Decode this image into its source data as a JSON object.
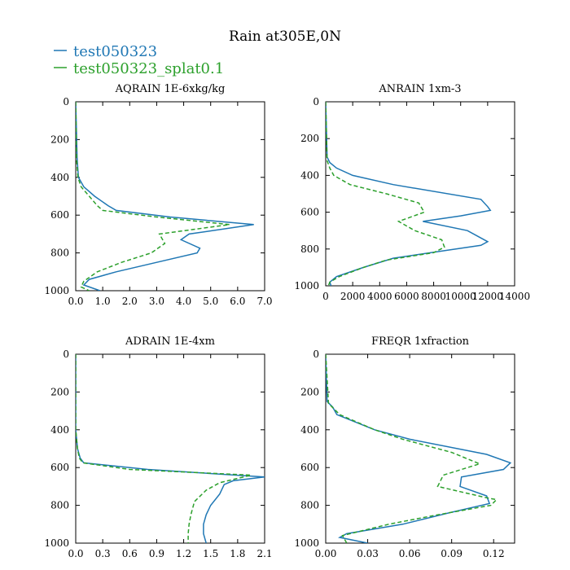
{
  "figure": {
    "title": "Rain at305E,0N",
    "legend": [
      {
        "name": "test050323",
        "color": "#1f77b4",
        "dash": "solid"
      },
      {
        "name": "test050323_splat0.1",
        "color": "#2ca02c",
        "dash": "dashed"
      }
    ]
  },
  "chart_data": [
    {
      "type": "line",
      "title": "AQRAIN  1E-6xkg/kg",
      "xlabel": "",
      "ylabel": "",
      "xlim": [
        0,
        7.0
      ],
      "ylim": [
        1000,
        0
      ],
      "xticks": [
        0,
        1,
        2,
        3,
        4,
        5,
        6,
        7
      ],
      "xtick_labels": [
        "0.0",
        "1.0",
        "2.0",
        "3.0",
        "4.0",
        "5.0",
        "6.0",
        "7.0"
      ],
      "yticks": [
        0,
        200,
        400,
        600,
        800,
        1000
      ],
      "ytick_labels": [
        "0",
        "200",
        "400",
        "600",
        "800",
        "1000"
      ],
      "series": [
        {
          "name": "test050323",
          "y": [
            0,
            300,
            400,
            450,
            500,
            550,
            575,
            610,
            650,
            700,
            730,
            775,
            800,
            850,
            900,
            940,
            970,
            1000
          ],
          "x": [
            0.0,
            0.05,
            0.1,
            0.3,
            0.7,
            1.2,
            1.5,
            3.5,
            6.6,
            4.2,
            3.9,
            4.6,
            4.5,
            3.0,
            1.5,
            0.5,
            0.3,
            0.9
          ]
        },
        {
          "name": "test050323_splat0.1",
          "y": [
            0,
            300,
            400,
            450,
            500,
            550,
            575,
            610,
            650,
            700,
            750,
            800,
            850,
            900,
            950,
            980,
            1000
          ],
          "x": [
            0.0,
            0.03,
            0.08,
            0.2,
            0.5,
            0.8,
            1.0,
            3.0,
            5.7,
            3.1,
            3.3,
            2.8,
            1.7,
            0.8,
            0.3,
            0.2,
            0.5
          ]
        }
      ]
    },
    {
      "type": "line",
      "title": "ANRAIN  1xm-3",
      "xlabel": "",
      "ylabel": "",
      "xlim": [
        0,
        14000
      ],
      "ylim": [
        1000,
        0
      ],
      "xticks": [
        0,
        2000,
        4000,
        6000,
        8000,
        10000,
        12000,
        14000
      ],
      "xtick_labels": [
        "0",
        "2000",
        "4000",
        "6000",
        "8000",
        "10000",
        "12000",
        "14000"
      ],
      "yticks": [
        0,
        200,
        400,
        600,
        800,
        1000
      ],
      "ytick_labels": [
        "0",
        "200",
        "400",
        "600",
        "800",
        "1000"
      ],
      "series": [
        {
          "name": "test050323",
          "y": [
            0,
            300,
            330,
            360,
            400,
            450,
            530,
            570,
            590,
            620,
            650,
            700,
            760,
            780,
            850,
            900,
            950,
            980,
            1000
          ],
          "x": [
            0,
            100,
            300,
            800,
            2000,
            5000,
            11500,
            12000,
            12200,
            10000,
            7200,
            10500,
            12000,
            11500,
            5000,
            2800,
            800,
            300,
            400
          ]
        },
        {
          "name": "test050323_splat0.1",
          "y": [
            0,
            320,
            360,
            400,
            450,
            500,
            550,
            600,
            650,
            700,
            750,
            790,
            820,
            860,
            900,
            950,
            980,
            1000
          ],
          "x": [
            0,
            100,
            300,
            600,
            1800,
            4500,
            6900,
            7300,
            5400,
            6600,
            8600,
            8800,
            8000,
            4500,
            2800,
            1000,
            300,
            200
          ]
        }
      ]
    },
    {
      "type": "line",
      "title": "ADRAIN  1E-4xm",
      "xlabel": "",
      "ylabel": "",
      "xlim": [
        0,
        2.1
      ],
      "ylim": [
        1000,
        0
      ],
      "xticks": [
        0,
        0.3,
        0.6,
        0.9,
        1.2,
        1.5,
        1.8,
        2.1
      ],
      "xtick_labels": [
        "0.0",
        "0.3",
        "0.6",
        "0.9",
        "1.2",
        "1.5",
        "1.8",
        "2.1"
      ],
      "yticks": [
        0,
        200,
        400,
        600,
        800,
        1000
      ],
      "ytick_labels": [
        "0",
        "200",
        "400",
        "600",
        "800",
        "1000"
      ],
      "series": [
        {
          "name": "test050323",
          "y": [
            0,
            400,
            450,
            500,
            550,
            575,
            610,
            650,
            670,
            690,
            740,
            800,
            850,
            900,
            950,
            1000
          ],
          "x": [
            0.0,
            0.0,
            0.01,
            0.02,
            0.05,
            0.09,
            0.8,
            2.1,
            1.75,
            1.65,
            1.6,
            1.5,
            1.45,
            1.42,
            1.42,
            1.45
          ]
        },
        {
          "name": "test050323_splat0.1",
          "y": [
            0,
            400,
            450,
            500,
            550,
            575,
            610,
            640,
            680,
            720,
            780,
            850,
            900,
            950,
            1000
          ],
          "x": [
            0.0,
            0.0,
            0.01,
            0.02,
            0.04,
            0.08,
            0.6,
            1.95,
            1.6,
            1.45,
            1.32,
            1.28,
            1.26,
            1.25,
            1.25
          ]
        }
      ]
    },
    {
      "type": "line",
      "title": "FREQR  1xfraction",
      "xlabel": "",
      "ylabel": "",
      "xlim": [
        0,
        0.135
      ],
      "ylim": [
        1000,
        0
      ],
      "xticks": [
        0,
        0.03,
        0.06,
        0.09,
        0.12
      ],
      "xtick_labels": [
        "0.00",
        "0.03",
        "0.06",
        "0.09",
        "0.12"
      ],
      "yticks": [
        0,
        200,
        400,
        600,
        800,
        1000
      ],
      "ytick_labels": [
        "0",
        "200",
        "400",
        "600",
        "800",
        "1000"
      ],
      "series": [
        {
          "name": "test050323",
          "y": [
            0,
            250,
            280,
            320,
            400,
            450,
            530,
            575,
            610,
            650,
            700,
            750,
            790,
            840,
            900,
            950,
            970,
            1000
          ],
          "x": [
            0.0,
            0.001,
            0.005,
            0.008,
            0.035,
            0.06,
            0.115,
            0.132,
            0.127,
            0.097,
            0.096,
            0.115,
            0.117,
            0.088,
            0.055,
            0.015,
            0.01,
            0.03
          ]
        },
        {
          "name": "test050323_splat0.1",
          "y": [
            0,
            260,
            290,
            320,
            400,
            450,
            520,
            580,
            640,
            700,
            760,
            770,
            800,
            850,
            900,
            960,
            1000
          ],
          "x": [
            0.0,
            0.002,
            0.006,
            0.01,
            0.035,
            0.055,
            0.09,
            0.11,
            0.084,
            0.08,
            0.115,
            0.122,
            0.118,
            0.08,
            0.045,
            0.012,
            0.015
          ]
        }
      ]
    }
  ]
}
